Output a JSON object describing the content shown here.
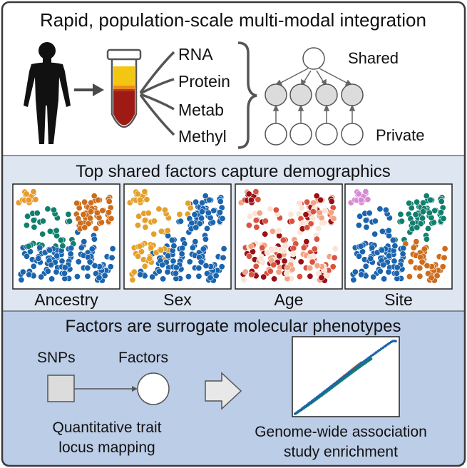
{
  "colors": {
    "border": "#3a3a3a",
    "panel_top": "#ffffff",
    "panel_middle": "#dde6f1",
    "panel_bottom": "#bccde7",
    "tube_yellow": "#f3c614",
    "tube_orange": "#ee8a1c",
    "tube_red": "#9e1a14",
    "node_fill": "#dcdcdc",
    "node_stroke": "#555555",
    "ancestry": [
      "#e89a2c",
      "#cc6d1e",
      "#117f6e",
      "#1b64ae"
    ],
    "sex": [
      "#e3a02d",
      "#1b64ae"
    ],
    "age": [
      "#fbe3d6",
      "#f2a384",
      "#d9533f",
      "#9a1015"
    ],
    "site": [
      "#e3a02d",
      "#cc6d1e",
      "#117f6e",
      "#1b64ae",
      "#d88ad6"
    ],
    "qq": [
      "#cc6d1e",
      "#117f6e",
      "#1b64ae"
    ]
  },
  "icons": [
    "person-silhouette-icon",
    "sample-tube-icon",
    "arrow-right-icon",
    "curly-brace-icon"
  ],
  "integration": {
    "title": "Rapid, population-scale multi-modal integration",
    "modalities": [
      "RNA",
      "Protein",
      "Metab",
      "Methyl"
    ],
    "shared_label": "Shared",
    "private_label": "Private"
  },
  "demographics": {
    "title": "Top shared factors capture demographics",
    "panels": [
      "Ancestry",
      "Sex",
      "Age",
      "Site"
    ]
  },
  "phenotypes": {
    "title": "Factors are surrogate molecular phenotypes",
    "snps_label": "SNPs",
    "factors_label": "Factors",
    "qtl_label_line1": "Quantitative trait",
    "qtl_label_line2": "locus mapping",
    "gwas_label_line1": "Genome-wide association",
    "gwas_label_line2": "study enrichment"
  }
}
